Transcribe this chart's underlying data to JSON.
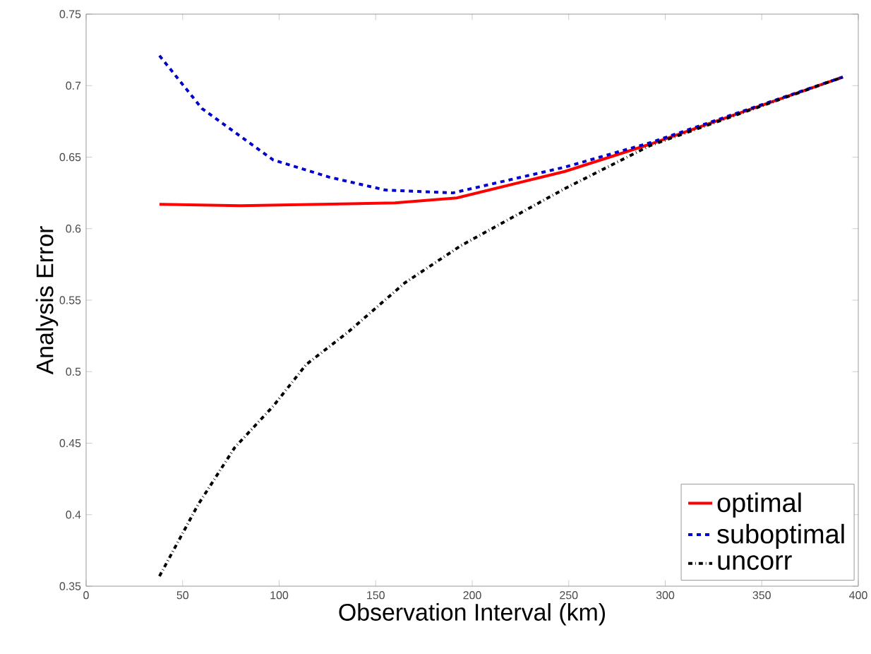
{
  "chart_data": {
    "type": "line",
    "xlabel": "Observation Interval (km)",
    "ylabel": "Analysis Error",
    "xlim": [
      0,
      400
    ],
    "ylim": [
      0.35,
      0.75
    ],
    "xticks": [
      0,
      50,
      100,
      150,
      200,
      250,
      300,
      350,
      400
    ],
    "yticks": [
      0.35,
      0.4,
      0.45,
      0.5,
      0.55,
      0.6,
      0.65,
      0.7,
      0.75
    ],
    "grid": false,
    "legend": "bottom right",
    "marker": "none",
    "series": [
      {
        "name": "optimal",
        "color": "#ff0000",
        "line_style": "solid",
        "x": [
          38,
          80,
          120,
          160,
          192,
          248,
          292,
          392
        ],
        "values": [
          0.617,
          0.616,
          0.617,
          0.618,
          0.6215,
          0.64,
          0.659,
          0.706
        ]
      },
      {
        "name": "suboptimal",
        "color": "#0000cc",
        "line_style": "dashed",
        "x": [
          38,
          60,
          97,
          126,
          155,
          190,
          248,
          292,
          392
        ],
        "values": [
          0.721,
          0.684,
          0.648,
          0.636,
          0.627,
          0.625,
          0.643,
          0.66,
          0.706
        ]
      },
      {
        "name": "uncorr",
        "color": "#000000",
        "line_style": "dashdotted",
        "x": [
          38,
          58,
          77,
          97,
          114,
          136,
          165,
          194,
          248,
          292,
          392
        ],
        "values": [
          0.357,
          0.407,
          0.447,
          0.476,
          0.505,
          0.528,
          0.562,
          0.588,
          0.628,
          0.658,
          0.706
        ]
      }
    ]
  }
}
